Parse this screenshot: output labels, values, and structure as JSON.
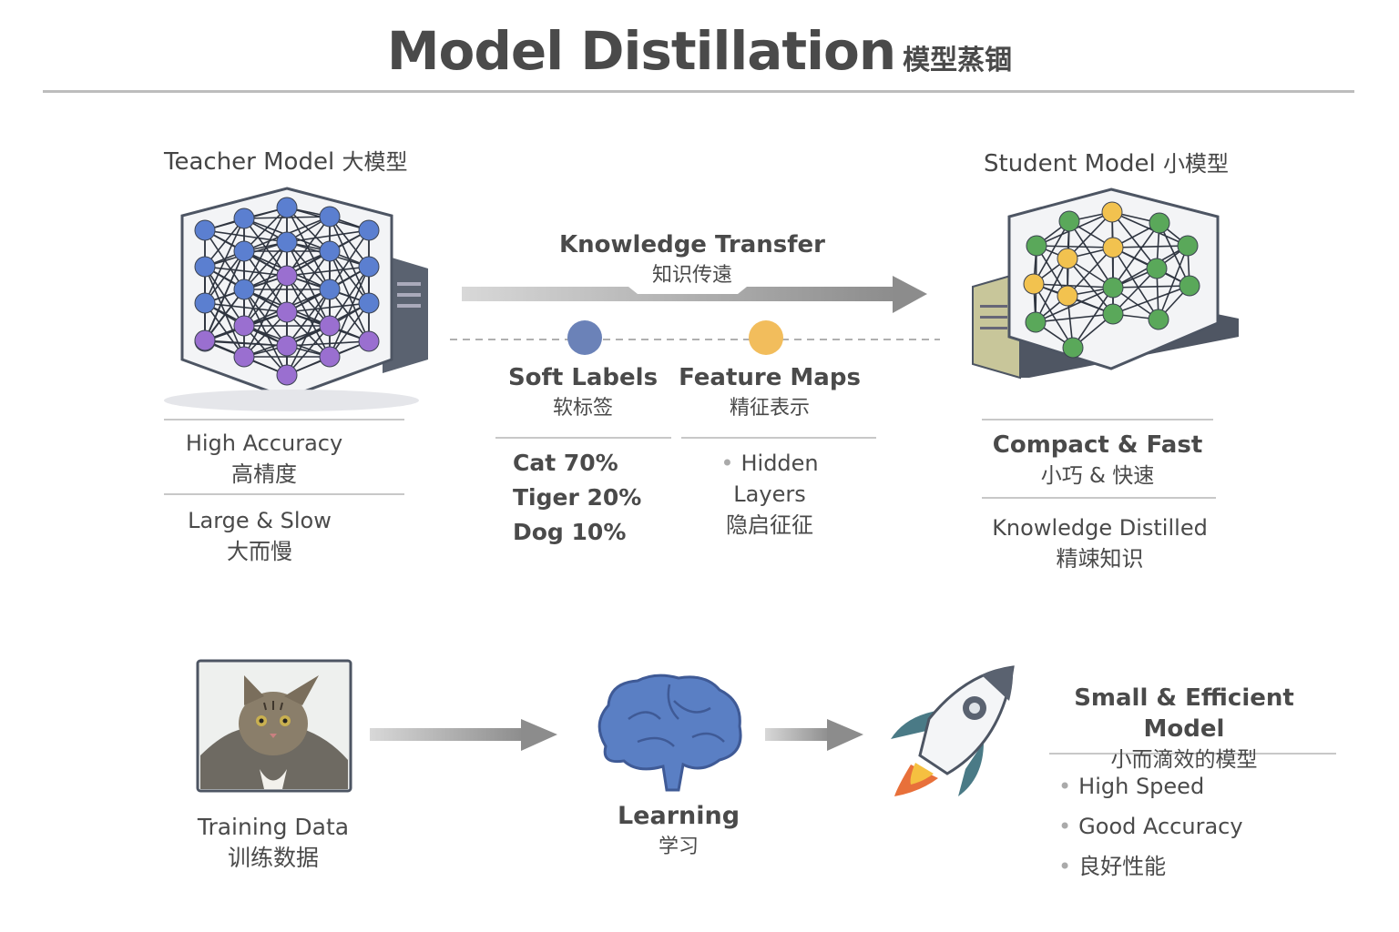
{
  "title": {
    "en": "Model Distillation",
    "zh": "模型蒸锢"
  },
  "colors": {
    "teacher_top": "#5b7fd0",
    "teacher_bottom": "#9a6fd0",
    "student_green": "#5aa85a",
    "student_yellow": "#f2c24f",
    "soft_labels_dot": "#6b82b8",
    "feature_maps_dot": "#f2bd5c",
    "arrow": "#9a9a9a",
    "brain": "#5a7fc4",
    "rocket_flame": "#e8703a"
  },
  "teacher": {
    "title": "Teacher Model",
    "title_zh": "大模型",
    "attr1": "High Accuracy",
    "attr1_zh": "高棈度",
    "attr2": "Large & Slow",
    "attr2_zh": "大而慢"
  },
  "student": {
    "title": "Student Model",
    "title_zh": "小模型",
    "attr1": "Compact & Fast",
    "attr1_zh": "小巧 & 快速",
    "attr2": "Knowledge Distilled",
    "attr2_zh": "精竦知识"
  },
  "transfer": {
    "title": "Knowledge Transfer",
    "title_zh": "知识传遠"
  },
  "soft_labels": {
    "title": "Soft Labels",
    "title_zh": "软标签",
    "items": [
      "Cat 70%",
      "Tiger 20%",
      "Dog 10%"
    ]
  },
  "feature_maps": {
    "title": "Feature Maps",
    "title_zh": "精征表示",
    "item": "Hidden Layers",
    "item_zh": "隐启征征"
  },
  "training": {
    "label": "Training Data",
    "label_zh": "训练数据",
    "icon": "cat-photo"
  },
  "learning": {
    "label": "Learning",
    "label_zh": "学习",
    "icon": "brain-icon"
  },
  "result": {
    "title": "Small & Efficient Model",
    "title_zh": "小而滴效的模型",
    "icon": "rocket-icon",
    "bullets": [
      "High Speed",
      "Good Accuracy",
      "良好性能"
    ]
  }
}
